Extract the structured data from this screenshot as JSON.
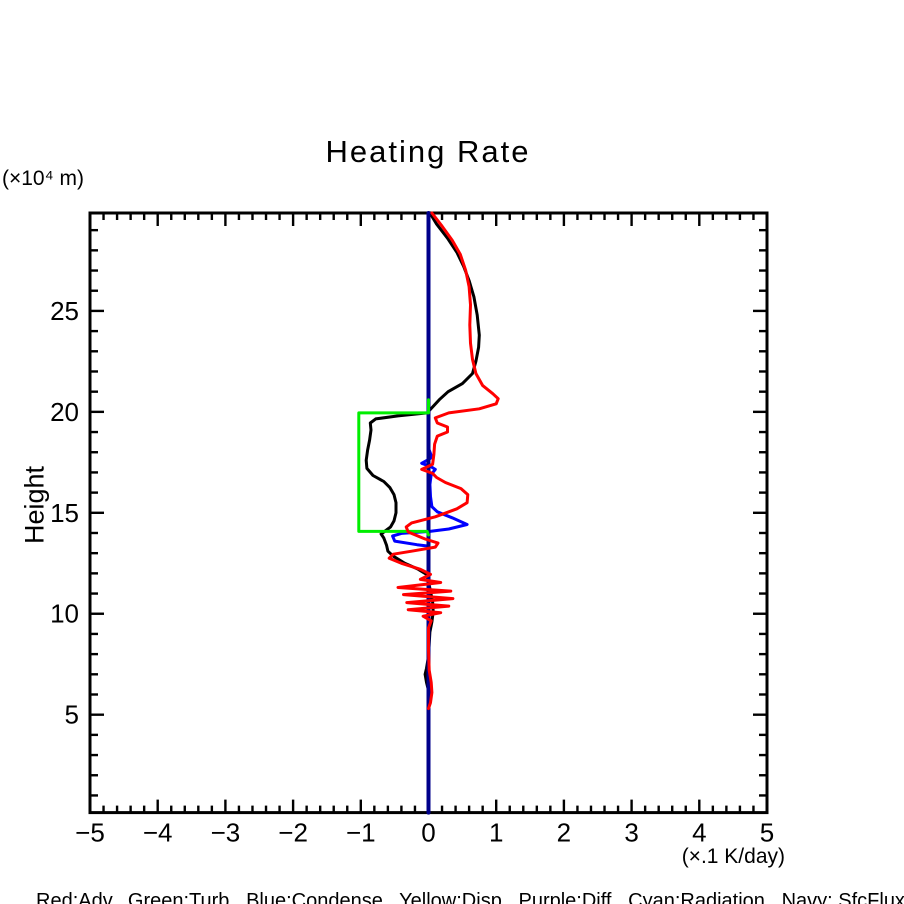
{
  "page": {
    "background": "#ffffff"
  },
  "chart_data": {
    "type": "line",
    "title": "Heating Rate",
    "y_unit_label": "(×10⁴ m)",
    "x_unit_label": "(×.1 K/day)",
    "ylabel": "Height",
    "caption": "Red:Adv,  Green:Turb,  Blue:Condense,  Yellow:Disp,  Purple:Diff,  Cyan:Radiation,  Navy: SfcFlux",
    "xlim": [
      -5,
      5
    ],
    "ylim": [
      0.15,
      29.85
    ],
    "x_tick_values": [
      -5,
      -4,
      -3,
      -2,
      -1,
      0,
      1,
      2,
      3,
      4,
      5
    ],
    "x_tick_labels": [
      "−5",
      "−4",
      "−3",
      "−2",
      "−1",
      "0",
      "1",
      "2",
      "3",
      "4",
      "5"
    ],
    "x_minor_step": 0.2,
    "y_tick_values": [
      5,
      10,
      15,
      20,
      25
    ],
    "y_tick_labels": [
      "5",
      "10",
      "15",
      "20",
      "25"
    ],
    "y_minor_step": 1,
    "grid": false,
    "axis_color": "#000000",
    "legend_position": "caption-below",
    "series": [
      {
        "name": "black",
        "legend": "",
        "color": "#000000",
        "width": 3,
        "points": [
          [
            0.02,
            29.85
          ],
          [
            0.12,
            29.3
          ],
          [
            0.28,
            28.6
          ],
          [
            0.42,
            27.9
          ],
          [
            0.52,
            27.2
          ],
          [
            0.6,
            26.5
          ],
          [
            0.67,
            25.7
          ],
          [
            0.72,
            24.8
          ],
          [
            0.75,
            23.8
          ],
          [
            0.74,
            23.2
          ],
          [
            0.7,
            22.5
          ],
          [
            0.65,
            21.9
          ],
          [
            0.5,
            21.4
          ],
          [
            0.29,
            21.0
          ],
          [
            0.16,
            20.6
          ],
          [
            0.05,
            20.2
          ],
          [
            -0.02,
            19.95
          ],
          [
            -0.45,
            19.8
          ],
          [
            -0.78,
            19.65
          ],
          [
            -0.86,
            19.45
          ],
          [
            -0.85,
            19.1
          ],
          [
            -0.87,
            18.6
          ],
          [
            -0.9,
            18.1
          ],
          [
            -0.92,
            17.6
          ],
          [
            -0.91,
            17.2
          ],
          [
            -0.82,
            16.85
          ],
          [
            -0.66,
            16.55
          ],
          [
            -0.57,
            16.25
          ],
          [
            -0.51,
            15.9
          ],
          [
            -0.48,
            15.5
          ],
          [
            -0.48,
            15.0
          ],
          [
            -0.51,
            14.6
          ],
          [
            -0.56,
            14.3
          ],
          [
            -0.64,
            14.1
          ],
          [
            -0.7,
            13.95
          ],
          [
            -0.66,
            13.75
          ],
          [
            -0.62,
            13.4
          ],
          [
            -0.6,
            13.1
          ],
          [
            -0.52,
            12.85
          ],
          [
            -0.35,
            12.5
          ],
          [
            -0.15,
            12.2
          ],
          [
            -0.03,
            11.95
          ],
          [
            0.0,
            11.6
          ],
          [
            0.03,
            11.1
          ],
          [
            0.06,
            10.6
          ],
          [
            0.07,
            10.1
          ],
          [
            0.05,
            9.6
          ],
          [
            0.02,
            9.1
          ],
          [
            0.01,
            8.5
          ],
          [
            0.0,
            7.9
          ],
          [
            -0.03,
            7.3
          ],
          [
            -0.05,
            7.0
          ],
          [
            -0.03,
            6.6
          ],
          [
            0.0,
            6.2
          ],
          [
            0.0,
            5.4
          ]
        ]
      },
      {
        "name": "condense-blue",
        "legend": "Condense",
        "color": "#0000ff",
        "width": 3,
        "points": [
          [
            0.0,
            18.2
          ],
          [
            0.05,
            17.75
          ],
          [
            -0.02,
            17.6
          ],
          [
            -0.1,
            17.45
          ],
          [
            0.03,
            17.3
          ],
          [
            0.1,
            17.15
          ],
          [
            0.04,
            16.9
          ],
          [
            0.02,
            16.4
          ],
          [
            0.03,
            15.8
          ],
          [
            0.05,
            15.3
          ],
          [
            0.13,
            15.05
          ],
          [
            0.35,
            14.75
          ],
          [
            0.57,
            14.42
          ],
          [
            0.3,
            14.2
          ],
          [
            0.02,
            14.08
          ],
          [
            -0.4,
            13.98
          ],
          [
            -0.53,
            13.85
          ],
          [
            -0.5,
            13.6
          ],
          [
            -0.17,
            13.42
          ],
          [
            0.0,
            13.35
          ]
        ]
      },
      {
        "name": "sfcflux-navy",
        "legend": "SfcFlux",
        "color": "#00008b",
        "width": 4,
        "points": [
          [
            0.0,
            29.85
          ],
          [
            0.0,
            0.15
          ]
        ]
      },
      {
        "name": "turb-green",
        "legend": "Turb",
        "color": "#00ee00",
        "width": 3,
        "points": [
          [
            0.0,
            20.6
          ],
          [
            0.0,
            19.95
          ],
          [
            -1.03,
            19.95
          ],
          [
            -1.03,
            14.08
          ],
          [
            -0.02,
            14.08
          ],
          [
            0.0,
            13.9
          ]
        ]
      },
      {
        "name": "adv-red",
        "legend": "Adv",
        "color": "#ff0000",
        "width": 3,
        "points": [
          [
            0.05,
            29.85
          ],
          [
            0.2,
            29.2
          ],
          [
            0.35,
            28.5
          ],
          [
            0.47,
            27.8
          ],
          [
            0.55,
            27.0
          ],
          [
            0.6,
            26.2
          ],
          [
            0.62,
            25.3
          ],
          [
            0.61,
            24.3
          ],
          [
            0.62,
            23.4
          ],
          [
            0.65,
            22.6
          ],
          [
            0.7,
            21.9
          ],
          [
            0.8,
            21.3
          ],
          [
            0.95,
            20.9
          ],
          [
            1.03,
            20.65
          ],
          [
            1.0,
            20.4
          ],
          [
            0.75,
            20.15
          ],
          [
            0.3,
            19.95
          ],
          [
            0.1,
            19.7
          ],
          [
            0.13,
            19.45
          ],
          [
            0.28,
            19.25
          ],
          [
            0.28,
            19.0
          ],
          [
            0.13,
            18.8
          ],
          [
            0.09,
            18.4
          ],
          [
            0.08,
            17.9
          ],
          [
            0.06,
            17.4
          ],
          [
            -0.1,
            17.15
          ],
          [
            0.06,
            16.95
          ],
          [
            0.12,
            16.75
          ],
          [
            0.25,
            16.5
          ],
          [
            0.48,
            16.2
          ],
          [
            0.58,
            15.9
          ],
          [
            0.57,
            15.5
          ],
          [
            0.42,
            15.2
          ],
          [
            0.1,
            14.8
          ],
          [
            -0.25,
            14.5
          ],
          [
            -0.33,
            14.3
          ],
          [
            -0.3,
            14.05
          ],
          [
            -0.05,
            13.7
          ],
          [
            0.14,
            13.5
          ],
          [
            0.1,
            13.3
          ],
          [
            -0.25,
            13.1
          ],
          [
            -0.52,
            12.95
          ],
          [
            -0.58,
            12.75
          ],
          [
            -0.4,
            12.5
          ],
          [
            -0.12,
            12.2
          ],
          [
            0.03,
            11.95
          ],
          [
            -0.12,
            11.7
          ],
          [
            0.18,
            11.55
          ],
          [
            -0.45,
            11.3
          ],
          [
            0.33,
            11.12
          ],
          [
            -0.37,
            10.95
          ],
          [
            0.36,
            10.75
          ],
          [
            -0.32,
            10.55
          ],
          [
            0.3,
            10.38
          ],
          [
            -0.3,
            10.2
          ],
          [
            0.18,
            10.05
          ],
          [
            -0.08,
            9.88
          ],
          [
            0.04,
            9.65
          ],
          [
            0.0,
            9.3
          ],
          [
            0.0,
            8.2
          ],
          [
            0.01,
            7.2
          ],
          [
            0.04,
            6.6
          ],
          [
            0.05,
            6.1
          ],
          [
            0.03,
            5.6
          ],
          [
            0.0,
            5.3
          ]
        ]
      }
    ]
  }
}
